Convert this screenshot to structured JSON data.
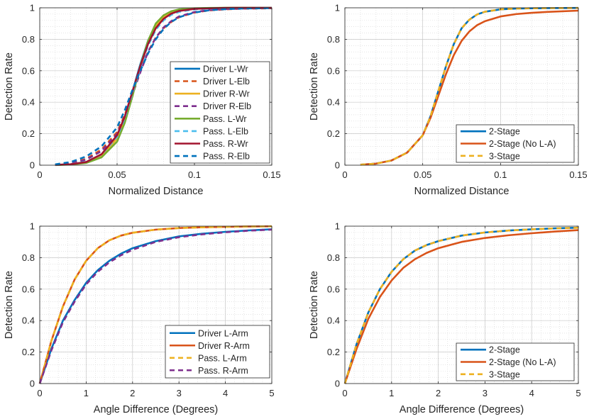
{
  "chart_data": [
    {
      "type": "line",
      "panel": "top-left",
      "title": "",
      "xlabel": "Normalized Distance",
      "ylabel": "Detection Rate",
      "xlim": [
        0,
        0.15
      ],
      "ylim": [
        0,
        1
      ],
      "xticks": [
        0,
        0.05,
        0.1,
        0.15
      ],
      "xtick_labels": [
        "0",
        "0.05",
        "0.1",
        "0.15"
      ],
      "yticks": [
        0,
        0.2,
        0.4,
        0.6,
        0.8,
        1
      ],
      "ytick_labels": [
        "0",
        "0.2",
        "0.4",
        "0.6",
        "0.8",
        "1"
      ],
      "grid": true,
      "legend_position": "right-middle",
      "x": [
        0.01,
        0.02,
        0.03,
        0.04,
        0.05,
        0.055,
        0.06,
        0.065,
        0.07,
        0.075,
        0.08,
        0.085,
        0.09,
        0.1,
        0.11,
        0.12,
        0.13,
        0.15
      ],
      "series": [
        {
          "name": "Driver L-Wr",
          "color": "#0072BD",
          "dash": "solid",
          "values": [
            0.002,
            0.006,
            0.02,
            0.065,
            0.18,
            0.3,
            0.47,
            0.64,
            0.79,
            0.89,
            0.945,
            0.972,
            0.985,
            0.995,
            0.998,
            0.999,
            1.0,
            1.0
          ]
        },
        {
          "name": "Driver L-Elb",
          "color": "#D95319",
          "dash": "dashed",
          "values": [
            0.004,
            0.014,
            0.04,
            0.1,
            0.21,
            0.32,
            0.46,
            0.6,
            0.72,
            0.81,
            0.87,
            0.91,
            0.94,
            0.97,
            0.984,
            0.99,
            0.994,
            0.997
          ]
        },
        {
          "name": "Driver R-Wr",
          "color": "#EDB120",
          "dash": "solid",
          "values": [
            0.002,
            0.005,
            0.018,
            0.06,
            0.17,
            0.29,
            0.45,
            0.63,
            0.78,
            0.885,
            0.94,
            0.97,
            0.985,
            0.995,
            0.998,
            0.999,
            1.0,
            1.0
          ]
        },
        {
          "name": "Driver R-Elb",
          "color": "#7E2F8E",
          "dash": "dashed",
          "values": [
            0.003,
            0.012,
            0.035,
            0.09,
            0.2,
            0.31,
            0.45,
            0.59,
            0.72,
            0.81,
            0.875,
            0.915,
            0.945,
            0.973,
            0.986,
            0.992,
            0.995,
            0.998
          ]
        },
        {
          "name": "Pass. L-Wr",
          "color": "#77AC30",
          "dash": "solid",
          "values": [
            0.001,
            0.004,
            0.014,
            0.05,
            0.15,
            0.27,
            0.44,
            0.63,
            0.79,
            0.9,
            0.952,
            0.978,
            0.99,
            0.997,
            0.999,
            1.0,
            1.0,
            1.0
          ]
        },
        {
          "name": "Pass. L-Elb",
          "color": "#4DBEEE",
          "dash": "dashed",
          "values": [
            0.002,
            0.007,
            0.022,
            0.068,
            0.18,
            0.3,
            0.46,
            0.62,
            0.76,
            0.86,
            0.92,
            0.955,
            0.974,
            0.99,
            0.995,
            0.997,
            0.999,
            1.0
          ]
        },
        {
          "name": "Pass. R-Wr",
          "color": "#A2142F",
          "dash": "solid",
          "values": [
            0.002,
            0.006,
            0.02,
            0.07,
            0.19,
            0.31,
            0.47,
            0.63,
            0.77,
            0.87,
            0.93,
            0.963,
            0.98,
            0.993,
            0.997,
            0.999,
            1.0,
            1.0
          ]
        },
        {
          "name": "Pass. R-Elb",
          "color": "#0072BD",
          "dash": "dashed",
          "values": [
            0.005,
            0.02,
            0.055,
            0.12,
            0.24,
            0.35,
            0.48,
            0.6,
            0.71,
            0.8,
            0.865,
            0.91,
            0.94,
            0.97,
            0.985,
            0.991,
            0.995,
            0.998
          ]
        }
      ]
    },
    {
      "type": "line",
      "panel": "top-right",
      "title": "",
      "xlabel": "Normalized Distance",
      "ylabel": "Detection Rate",
      "xlim": [
        0,
        0.15
      ],
      "ylim": [
        0,
        1
      ],
      "xticks": [
        0,
        0.05,
        0.1,
        0.15
      ],
      "xtick_labels": [
        "0",
        "0.05",
        "0.1",
        "0.15"
      ],
      "yticks": [
        0,
        0.2,
        0.4,
        0.6,
        0.8,
        1
      ],
      "ytick_labels": [
        "0",
        "0.2",
        "0.4",
        "0.6",
        "0.8",
        "1"
      ],
      "grid": true,
      "legend_position": "bottom-right",
      "x": [
        0.01,
        0.02,
        0.03,
        0.04,
        0.05,
        0.055,
        0.06,
        0.065,
        0.07,
        0.075,
        0.08,
        0.085,
        0.09,
        0.1,
        0.11,
        0.12,
        0.13,
        0.15
      ],
      "series": [
        {
          "name": "2-Stage",
          "color": "#0072BD",
          "dash": "solid",
          "values": [
            0.003,
            0.01,
            0.03,
            0.08,
            0.19,
            0.31,
            0.47,
            0.63,
            0.77,
            0.87,
            0.925,
            0.958,
            0.975,
            0.99,
            0.995,
            0.997,
            0.998,
            0.999
          ]
        },
        {
          "name": "2-Stage (No L-A)",
          "color": "#D95319",
          "dash": "solid",
          "values": [
            0.003,
            0.01,
            0.03,
            0.08,
            0.19,
            0.3,
            0.44,
            0.58,
            0.7,
            0.79,
            0.85,
            0.89,
            0.915,
            0.945,
            0.96,
            0.968,
            0.974,
            0.982
          ]
        },
        {
          "name": "3-Stage",
          "color": "#EDB120",
          "dash": "dashed",
          "values": [
            0.003,
            0.01,
            0.03,
            0.08,
            0.19,
            0.31,
            0.47,
            0.63,
            0.77,
            0.87,
            0.925,
            0.958,
            0.975,
            0.99,
            0.995,
            0.997,
            0.998,
            0.999
          ]
        }
      ]
    },
    {
      "type": "line",
      "panel": "bottom-left",
      "title": "",
      "xlabel": "Angle Difference (Degrees)",
      "ylabel": "Detection Rate",
      "xlim": [
        0,
        5
      ],
      "ylim": [
        0,
        1
      ],
      "xticks": [
        0,
        1,
        2,
        3,
        4,
        5
      ],
      "xtick_labels": [
        "0",
        "1",
        "2",
        "3",
        "4",
        "5"
      ],
      "yticks": [
        0,
        0.2,
        0.4,
        0.6,
        0.8,
        1
      ],
      "ytick_labels": [
        "0",
        "0.2",
        "0.4",
        "0.6",
        "0.8",
        "1"
      ],
      "grid": true,
      "legend_position": "bottom-right",
      "x": [
        0,
        0.25,
        0.5,
        0.75,
        1,
        1.25,
        1.5,
        1.75,
        2,
        2.5,
        3,
        3.5,
        4,
        4.5,
        5
      ],
      "series": [
        {
          "name": "Driver L-Arm",
          "color": "#0072BD",
          "dash": "solid",
          "values": [
            0,
            0.22,
            0.4,
            0.53,
            0.64,
            0.72,
            0.78,
            0.825,
            0.86,
            0.905,
            0.935,
            0.952,
            0.964,
            0.973,
            0.98
          ]
        },
        {
          "name": "Driver R-Arm",
          "color": "#D95319",
          "dash": "solid",
          "values": [
            0,
            0.27,
            0.49,
            0.66,
            0.78,
            0.86,
            0.91,
            0.94,
            0.958,
            0.978,
            0.988,
            0.993,
            0.996,
            0.998,
            0.999
          ]
        },
        {
          "name": "Pass. L-Arm",
          "color": "#EDB120",
          "dash": "dashed",
          "values": [
            0,
            0.27,
            0.49,
            0.66,
            0.78,
            0.86,
            0.91,
            0.94,
            0.958,
            0.978,
            0.988,
            0.993,
            0.996,
            0.998,
            0.999
          ]
        },
        {
          "name": "Pass. R-Arm",
          "color": "#7E2F8E",
          "dash": "dashed",
          "values": [
            0,
            0.21,
            0.39,
            0.52,
            0.63,
            0.71,
            0.77,
            0.815,
            0.85,
            0.9,
            0.93,
            0.948,
            0.961,
            0.971,
            0.978
          ]
        }
      ]
    },
    {
      "type": "line",
      "panel": "bottom-right",
      "title": "",
      "xlabel": "Angle Difference (Degrees)",
      "ylabel": "Detection Rate",
      "xlim": [
        0,
        5
      ],
      "ylim": [
        0,
        1
      ],
      "xticks": [
        0,
        1,
        2,
        3,
        4,
        5
      ],
      "xtick_labels": [
        "0",
        "1",
        "2",
        "3",
        "4",
        "5"
      ],
      "yticks": [
        0,
        0.2,
        0.4,
        0.6,
        0.8,
        1
      ],
      "ytick_labels": [
        "0",
        "0.2",
        "0.4",
        "0.6",
        "0.8",
        "1"
      ],
      "grid": true,
      "legend_position": "bottom-right",
      "x": [
        0,
        0.25,
        0.5,
        0.75,
        1,
        1.25,
        1.5,
        1.75,
        2,
        2.5,
        3,
        3.5,
        4,
        4.5,
        5
      ],
      "series": [
        {
          "name": "2-Stage",
          "color": "#0072BD",
          "dash": "solid",
          "values": [
            0,
            0.25,
            0.45,
            0.6,
            0.71,
            0.79,
            0.845,
            0.88,
            0.905,
            0.94,
            0.96,
            0.972,
            0.98,
            0.986,
            0.99
          ]
        },
        {
          "name": "2-Stage (No L-A)",
          "color": "#D95319",
          "dash": "solid",
          "values": [
            0,
            0.22,
            0.41,
            0.55,
            0.655,
            0.735,
            0.79,
            0.83,
            0.86,
            0.9,
            0.925,
            0.942,
            0.955,
            0.966,
            0.975
          ]
        },
        {
          "name": "3-Stage",
          "color": "#EDB120",
          "dash": "dashed",
          "values": [
            0,
            0.25,
            0.45,
            0.6,
            0.71,
            0.79,
            0.845,
            0.88,
            0.905,
            0.94,
            0.96,
            0.972,
            0.98,
            0.986,
            0.99
          ]
        }
      ]
    }
  ]
}
